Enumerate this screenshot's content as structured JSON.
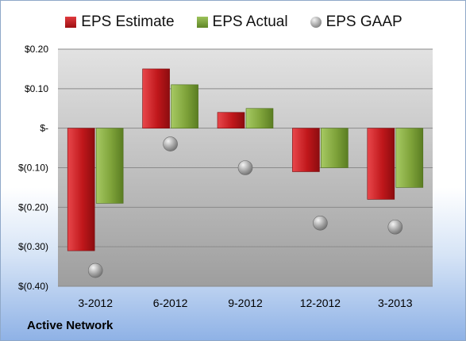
{
  "chart_data": {
    "type": "bar",
    "categories": [
      "3-2012",
      "6-2012",
      "9-2012",
      "12-2012",
      "3-2013"
    ],
    "series": [
      {
        "name": "EPS Estimate",
        "kind": "bar",
        "color": "#c0171b",
        "values": [
          -0.31,
          0.15,
          0.04,
          -0.11,
          -0.18
        ]
      },
      {
        "name": "EPS Actual",
        "kind": "bar",
        "color": "#7fa33a",
        "values": [
          -0.19,
          0.11,
          0.05,
          -0.1,
          -0.15
        ]
      },
      {
        "name": "EPS GAAP",
        "kind": "marker",
        "color": "#9a9a9a",
        "values": [
          -0.36,
          -0.04,
          -0.1,
          -0.24,
          -0.25
        ]
      }
    ],
    "ylim": [
      -0.4,
      0.2
    ],
    "yticks": [
      0.2,
      0.1,
      0,
      -0.1,
      -0.2,
      -0.3,
      -0.4
    ],
    "ytick_labels": [
      "$0.20",
      "$0.10",
      "$-",
      "$(0.10)",
      "$(0.20)",
      "$(0.30)",
      "$(0.40)"
    ],
    "grid": true,
    "legend_position": "top"
  },
  "footer": {
    "company": "Active Network"
  }
}
